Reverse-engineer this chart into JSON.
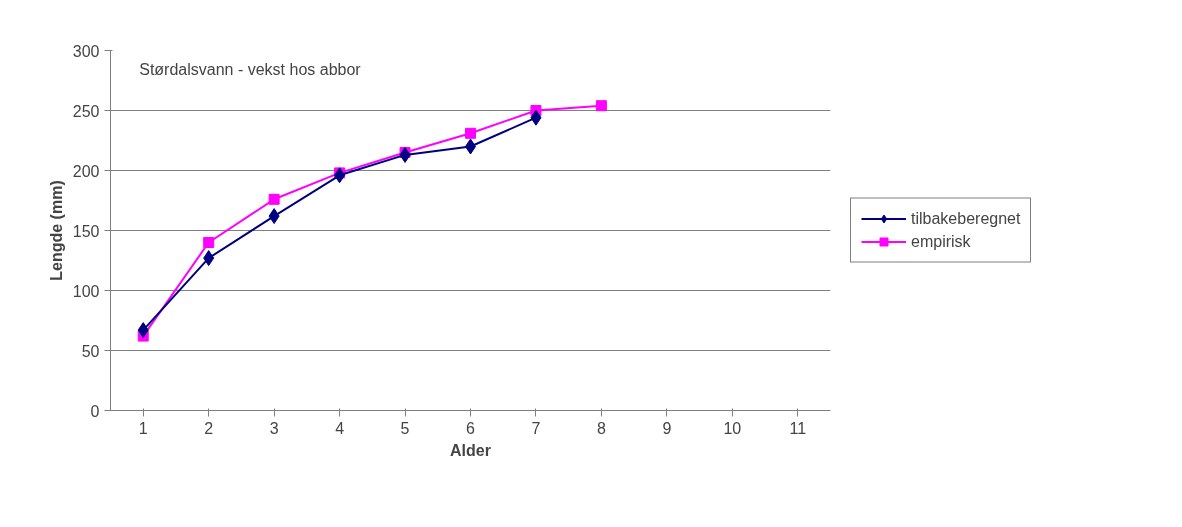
{
  "chart_data": {
    "type": "line",
    "title": "Størdalsvann - vekst hos abbor",
    "xlabel": "Alder",
    "ylabel": "Lengde (mm)",
    "categories": [
      "1",
      "2",
      "3",
      "4",
      "5",
      "6",
      "7",
      "8",
      "9",
      "10",
      "11"
    ],
    "series": [
      {
        "name": "tilbakeberegnet",
        "color": "#000080",
        "marker": "diamond",
        "values": [
          67,
          127,
          162,
          196,
          213,
          220,
          244,
          null,
          null,
          null,
          null
        ]
      },
      {
        "name": "empirisk",
        "color": "#ff00ff",
        "marker": "square",
        "values": [
          62,
          140,
          176,
          198,
          215,
          231,
          250,
          254,
          null,
          null,
          null
        ]
      }
    ],
    "ylim": [
      0,
      300
    ],
    "yticks": [
      0,
      50,
      100,
      150,
      200,
      250,
      300
    ],
    "grid": "y",
    "legend": "right",
    "line_style": "solid"
  }
}
